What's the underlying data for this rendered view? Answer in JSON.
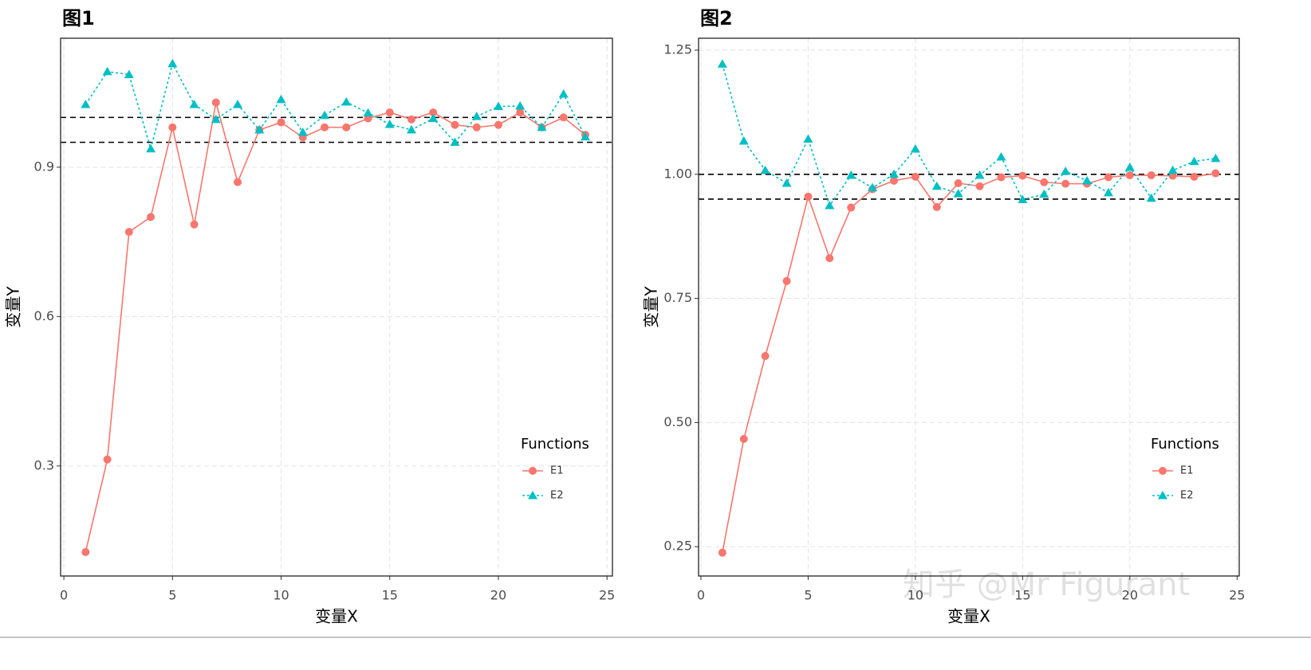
{
  "watermark": "知乎 @Mr Figurant",
  "chart_data": [
    {
      "type": "line",
      "title": "图1",
      "x_label": "变量X",
      "y_label": "变量Y",
      "legend_title": "Functions",
      "legend": "lower right",
      "grid": true,
      "x": [
        1,
        2,
        3,
        4,
        5,
        6,
        7,
        8,
        9,
        10,
        11,
        12,
        13,
        14,
        15,
        16,
        17,
        18,
        19,
        20,
        21,
        22,
        23,
        24
      ],
      "series": [
        {
          "name": "E1",
          "color": "#F8766D",
          "line_style": "solid",
          "marker": "circle",
          "values": [
            0.127,
            0.313,
            0.77,
            0.8,
            0.98,
            0.785,
            1.03,
            0.87,
            0.975,
            0.99,
            0.96,
            0.98,
            0.98,
            0.998,
            1.01,
            0.996,
            1.01,
            0.985,
            0.98,
            0.985,
            1.01,
            0.98,
            1.0,
            0.965
          ]
        },
        {
          "name": "E2",
          "color": "#00BFC4",
          "line_style": "dotted",
          "marker": "triangle",
          "values": [
            1.026,
            1.092,
            1.086,
            0.937,
            1.108,
            1.026,
            0.996,
            1.026,
            0.975,
            1.036,
            0.97,
            1.004,
            1.031,
            1.009,
            0.986,
            0.975,
            0.998,
            0.95,
            1.002,
            1.022,
            1.023,
            0.98,
            1.047,
            0.961
          ]
        }
      ],
      "hlines": [
        1.0,
        0.95
      ],
      "xlim": [
        -0.15,
        25.25
      ],
      "xticks": [
        0,
        5,
        10,
        15,
        20,
        25
      ],
      "ylim": [
        0.079,
        1.159
      ],
      "yticks": [
        0.3,
        0.6,
        0.9
      ]
    },
    {
      "type": "line",
      "title": "图2",
      "x_label": "变量X",
      "y_label": "变量Y",
      "legend_title": "Functions",
      "legend": "lower right",
      "grid": true,
      "x": [
        1,
        2,
        3,
        4,
        5,
        6,
        7,
        8,
        9,
        10,
        11,
        12,
        13,
        14,
        15,
        16,
        17,
        18,
        19,
        20,
        21,
        22,
        23,
        24
      ],
      "series": [
        {
          "name": "E1",
          "color": "#F8766D",
          "line_style": "solid",
          "marker": "circle",
          "values": [
            0.238,
            0.467,
            0.634,
            0.785,
            0.955,
            0.831,
            0.933,
            0.97,
            0.987,
            0.995,
            0.934,
            0.982,
            0.976,
            0.994,
            0.997,
            0.984,
            0.981,
            0.981,
            0.994,
            0.998,
            0.998,
            0.997,
            0.995,
            1.002
          ]
        },
        {
          "name": "E2",
          "color": "#00BFC4",
          "line_style": "dotted",
          "marker": "triangle",
          "values": [
            1.222,
            1.067,
            1.008,
            0.982,
            1.071,
            0.937,
            0.998,
            0.973,
            1.0,
            1.051,
            0.976,
            0.961,
            0.998,
            1.035,
            0.949,
            0.96,
            1.006,
            0.987,
            0.963,
            1.014,
            0.952,
            1.008,
            1.026,
            1.032
          ]
        }
      ],
      "hlines": [
        1.0,
        0.95
      ],
      "xlim": [
        -0.11,
        25.1
      ],
      "xticks": [
        0,
        5,
        10,
        15,
        20,
        25
      ],
      "ylim": [
        0.191,
        1.274
      ],
      "yticks": [
        0.25,
        {
          "value": 0.5,
          "label": "0.50"
        },
        0.75,
        {
          "value": 1,
          "label": "1.00"
        },
        1.25
      ]
    }
  ]
}
